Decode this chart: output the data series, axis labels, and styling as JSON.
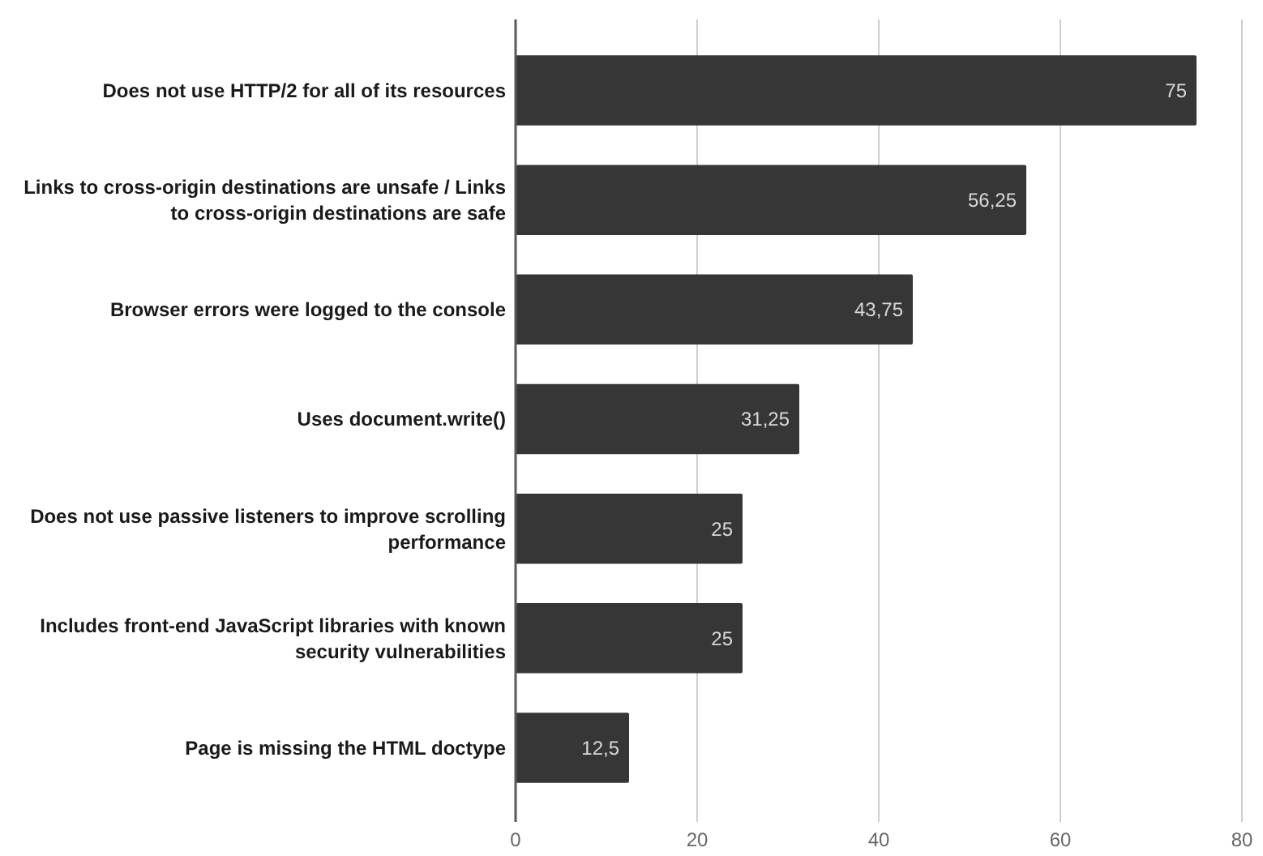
{
  "chart_data": {
    "type": "bar",
    "orientation": "horizontal",
    "categories": [
      "Does not use HTTP/2 for all of its resources",
      "Links to cross-origin destinations are unsafe / Links to cross-origin destinations are safe",
      "Browser errors were logged to the console",
      "Uses document.write()",
      "Does not use passive listeners to improve scrolling performance",
      "Includes front-end JavaScript libraries with known security vulnerabilities",
      "Page is missing the HTML doctype"
    ],
    "values": [
      75,
      56.25,
      43.75,
      31.25,
      25,
      25,
      12.5
    ],
    "value_labels": [
      "75",
      "56,25",
      "43,75",
      "31,25",
      "25",
      "25",
      "12,5"
    ],
    "color": "#363636",
    "xlim": [
      0,
      80
    ],
    "xticks": [
      0,
      20,
      40,
      60,
      80
    ],
    "grid": "x"
  }
}
